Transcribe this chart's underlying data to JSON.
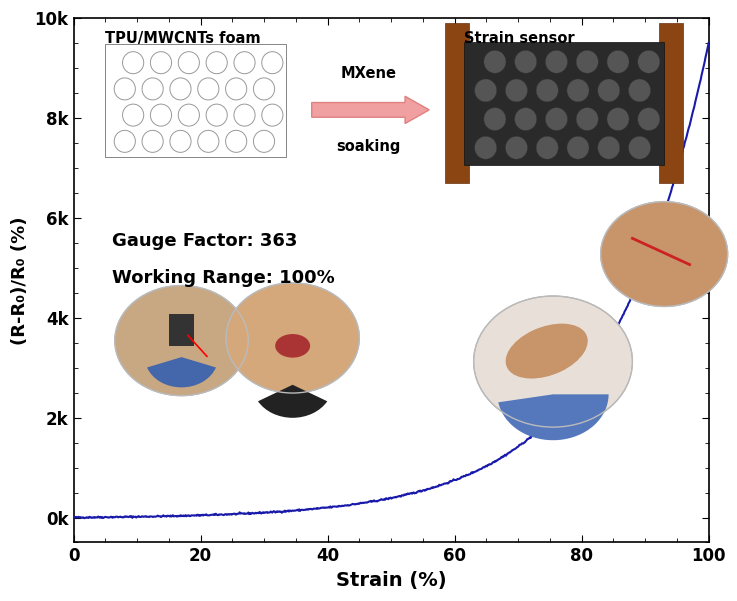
{
  "xlabel": "Strain (%)",
  "ylabel": "(R-R₀)/R₀ (%)",
  "xlim": [
    0,
    100
  ],
  "ylim": [
    -500,
    10000
  ],
  "yticks": [
    0,
    2000,
    4000,
    6000,
    8000,
    10000
  ],
  "ytick_labels": [
    "0k",
    "2k",
    "4k",
    "6k",
    "8k",
    "10k"
  ],
  "xticks": [
    0,
    20,
    40,
    60,
    80,
    100
  ],
  "line_color": "#1a1aaa",
  "line_width": 1.5,
  "gauge_factor_text": "Gauge Factor: 363",
  "working_range_text": "Working Range: 100%",
  "foam_label": "TPU/MWCNTs foam",
  "sensor_label": "Strain sensor",
  "arrow_label1": "MXene",
  "arrow_label2": "soaking",
  "background_color": "#ffffff",
  "xlabel_fontsize": 14,
  "ylabel_fontsize": 13,
  "tick_fontsize": 12
}
